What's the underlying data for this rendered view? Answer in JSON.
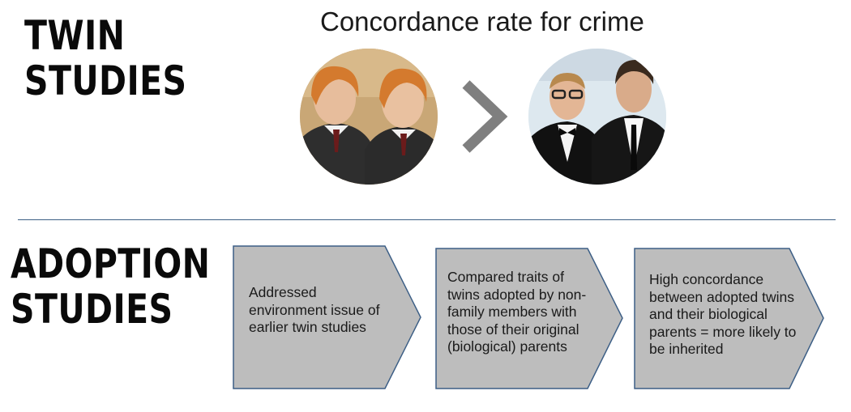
{
  "twin_heading": {
    "line1": "TWIN",
    "line2": "STUDIES"
  },
  "subtitle": "Concordance rate for crime",
  "comparison_icon": "greater-than-chevron-icon",
  "adoption_heading": {
    "line1": "ADOPTION",
    "line2": "STUDIES"
  },
  "steps": [
    {
      "text": "Addressed environment issue of earlier twin studies"
    },
    {
      "text": "Compared traits of twins adopted by non-family members with those of their original (biological) parents"
    },
    {
      "text": "High concordance between adopted twins and their biological parents = more likely to be inherited"
    }
  ],
  "colors": {
    "arrow_fill": "#bdbdbd",
    "arrow_border": "#3d5f86",
    "chevron": "#7f7f7f",
    "divider": "#3d5f86"
  }
}
